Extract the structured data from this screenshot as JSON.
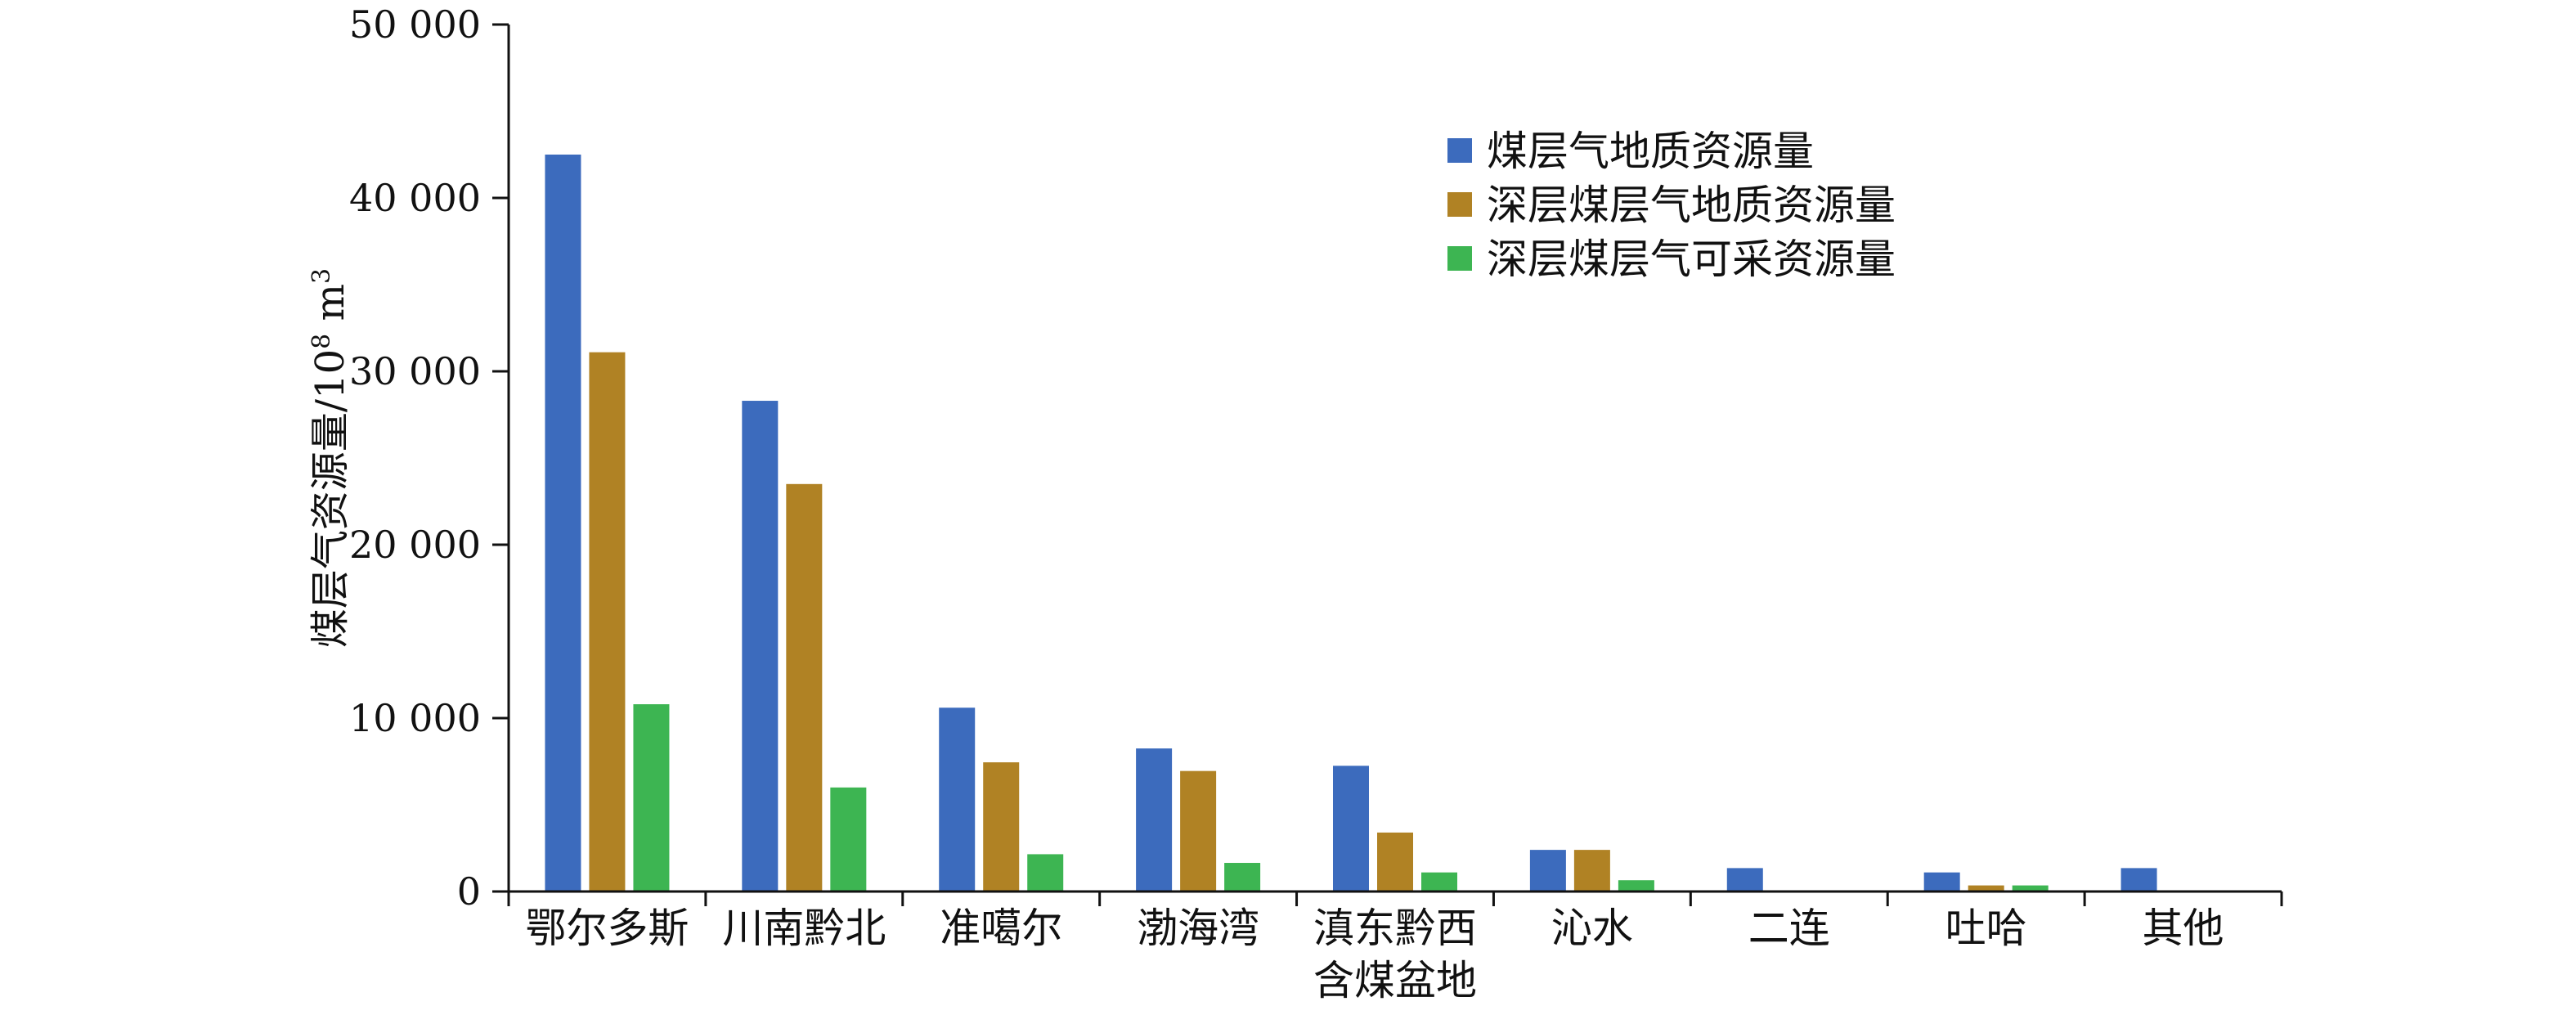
{
  "chart_data": {
    "type": "bar",
    "ylabel": "煤层气资源量/10",
    "ylabel_superscript": "8",
    "ylabel_unit": " m",
    "ylabel_unit_superscript": "3",
    "ylim": [
      0,
      50000
    ],
    "yticks": [
      0,
      10000,
      20000,
      30000,
      40000,
      50000
    ],
    "ytick_labels": [
      "0",
      "10 000",
      "20 000",
      "30 000",
      "40 000",
      "50 000"
    ],
    "categories": [
      [
        "鄂尔多斯"
      ],
      [
        "川南黔北"
      ],
      [
        "准噶尔"
      ],
      [
        "渤海湾"
      ],
      [
        "滇东黔西",
        "含煤盆地"
      ],
      [
        "沁水"
      ],
      [
        "二连"
      ],
      [
        "吐哈"
      ],
      [
        "其他"
      ]
    ],
    "series": [
      {
        "name": "煤层气地质资源量",
        "color": "#3c6bbd",
        "values": [
          42500,
          28300,
          10600,
          8250,
          7250,
          2400,
          1350,
          1100,
          1350
        ]
      },
      {
        "name": "深层煤层气地质资源量",
        "color": "#b08224",
        "values": [
          31100,
          23500,
          7450,
          6950,
          3400,
          2400,
          0,
          350,
          0
        ]
      },
      {
        "name": "深层煤层气可采资源量",
        "color": "#3db552",
        "values": [
          10800,
          6000,
          2150,
          1650,
          1100,
          650,
          0,
          350,
          0
        ]
      }
    ],
    "grid": false,
    "legend_position": "top-right"
  }
}
